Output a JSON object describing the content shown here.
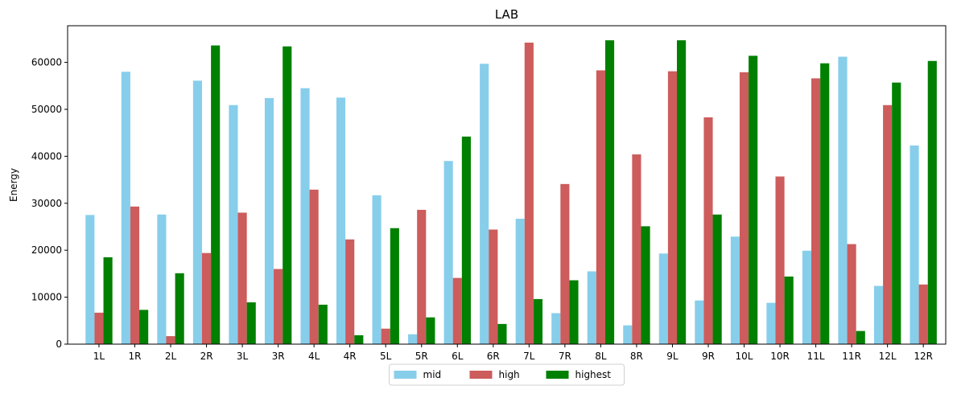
{
  "chart_data": {
    "type": "bar",
    "title": "LAB",
    "xlabel": "",
    "ylabel": "Energy",
    "ylim": [
      0,
      67800
    ],
    "yticks": [
      0,
      10000,
      20000,
      30000,
      40000,
      50000,
      60000
    ],
    "grid": false,
    "legend_position": "bottom-center",
    "categories": [
      "1L",
      "1R",
      "2L",
      "2R",
      "3L",
      "3R",
      "4L",
      "4R",
      "5L",
      "5R",
      "6L",
      "6R",
      "7L",
      "7R",
      "8L",
      "8R",
      "9L",
      "9R",
      "10L",
      "10R",
      "11L",
      "11R",
      "12L",
      "12R"
    ],
    "series": [
      {
        "name": "mid",
        "color": "#87ceeb",
        "values": [
          27500,
          58000,
          27600,
          56100,
          50900,
          52400,
          54500,
          52500,
          31700,
          2100,
          39000,
          59700,
          26700,
          6600,
          15500,
          4000,
          19300,
          9300,
          22900,
          8800,
          19900,
          61200,
          12400,
          42300
        ]
      },
      {
        "name": "high",
        "color": "#cd5c5c",
        "values": [
          6700,
          29300,
          1700,
          19400,
          28000,
          16000,
          32900,
          22300,
          3300,
          28600,
          14100,
          24400,
          64200,
          34100,
          58300,
          40400,
          58100,
          48300,
          57900,
          35700,
          56600,
          21300,
          50900,
          12700
        ]
      },
      {
        "name": "highest",
        "color": "#008000",
        "values": [
          18500,
          7300,
          15100,
          63600,
          8900,
          63400,
          8400,
          1900,
          24700,
          5700,
          44200,
          4300,
          9600,
          13600,
          64700,
          25100,
          64700,
          27600,
          61400,
          14400,
          59800,
          2800,
          55700,
          60300
        ]
      }
    ]
  }
}
